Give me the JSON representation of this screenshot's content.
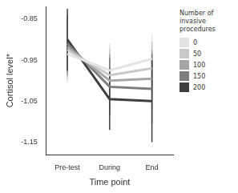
{
  "chart_data": {
    "type": "line",
    "x_label": "Time point",
    "y_label": "Cortisol level*",
    "legend_title": "Number of invasive procedures",
    "categories": [
      "Pre-test",
      "During",
      "End"
    ],
    "ylim": [
      -1.18,
      -0.82
    ],
    "yticks": [
      -1.15,
      -1.05,
      -0.95,
      -0.85
    ],
    "grid": false,
    "legend": "right",
    "series": [
      {
        "name": "0",
        "color": "#e3e3e3",
        "values": [
          -0.935,
          -0.975,
          -0.947
        ],
        "error": [
          0.07,
          0.065,
          0.06
        ]
      },
      {
        "name": "50",
        "color": "#c9c9c9",
        "values": [
          -0.925,
          -0.987,
          -0.97
        ],
        "error": [
          0.07,
          0.065,
          0.065
        ]
      },
      {
        "name": "100",
        "color": "#a6a6a6",
        "values": [
          -0.918,
          -1.0,
          -0.995
        ],
        "error": [
          0.07,
          0.065,
          0.07
        ]
      },
      {
        "name": "150",
        "color": "#7d7d7d",
        "values": [
          -0.91,
          -1.015,
          -1.02
        ],
        "error": [
          0.07,
          0.07,
          0.085
        ]
      },
      {
        "name": "200",
        "color": "#3f3f3f",
        "values": [
          -0.9,
          -1.045,
          -1.05
        ],
        "error": [
          0.075,
          0.075,
          0.1
        ]
      }
    ]
  }
}
